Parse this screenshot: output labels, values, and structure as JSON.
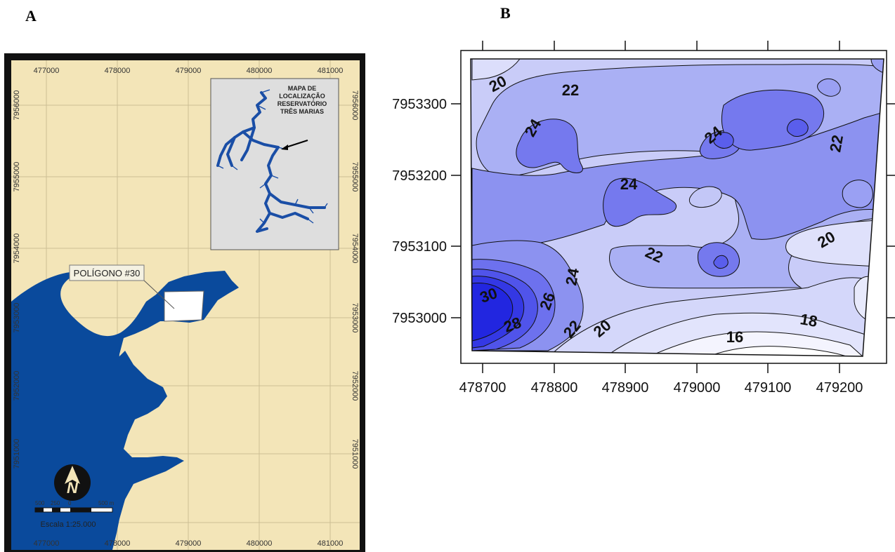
{
  "panel_a": {
    "letter": "A",
    "x_ticks": [
      "477000",
      "478000",
      "479000",
      "480000",
      "481000"
    ],
    "y_ticks": [
      "7956000",
      "7955000",
      "7954000",
      "7953000",
      "7952000",
      "7951000"
    ],
    "polygon_label": "POLÍGONO #30",
    "inset_title": [
      "MAPA DE",
      "LOCALIZAÇÃO",
      "RESERVATÓRIO",
      "TRÊS MARIAS"
    ],
    "scale_label": "Escala 1:25.000",
    "scale_ticks": [
      "500",
      "250",
      "0",
      "500 m"
    ],
    "north_label": "N",
    "colors": {
      "land": "#f3e5b8",
      "water": "#0a4a9c",
      "frame": "#111111",
      "inset_bg": "#dedede"
    }
  },
  "panel_b": {
    "letter": "B",
    "x_ticks": [
      "478700",
      "478800",
      "478900",
      "479000",
      "479100",
      "479200"
    ],
    "y_ticks": [
      "7953300",
      "7953200",
      "7953100",
      "7953000"
    ],
    "contour_labels": [
      "20",
      "22",
      "24",
      "24",
      "24",
      "22",
      "24",
      "22",
      "20",
      "30",
      "26",
      "24",
      "28",
      "22",
      "20",
      "18",
      "16"
    ],
    "colors": {
      "low": "#ffffff",
      "mid": "#aab0f4",
      "high": "#6a6ef0",
      "peak": "#2020e0"
    }
  }
}
